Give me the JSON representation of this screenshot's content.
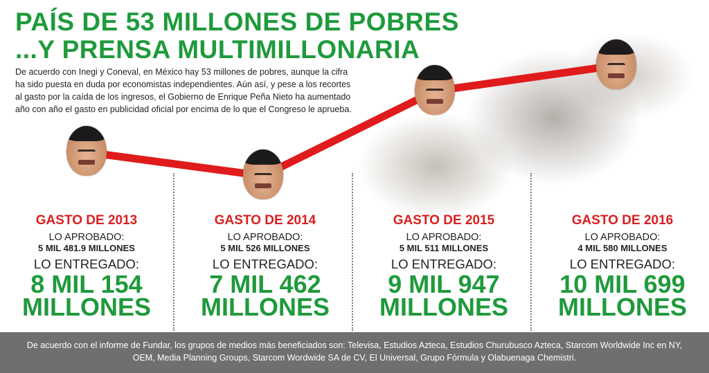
{
  "title": {
    "line1": "PAÍS DE 53 MILLONES DE POBRES",
    "line2": "...Y PRENSA MULTIMILLONARIA"
  },
  "intro": "De acuerdo con Inegi y Coneval, en México hay 53 millones de pobres, aunque la cifra ha sido puesta en duda por economistas independientes. Aún así, y pese a los recortes al gasto por la caída de los ingresos, el Gobierno de Enrique Peña Nieto ha aumentado año con año el gasto en publicidad oficial por encima de lo que el Congreso le aprueba.",
  "columns": [
    {
      "year": "GASTO DE 2013",
      "approved_label": "LO APROBADO:",
      "approved_value": "5 MIL 481.9 MILLONES",
      "delivered_label": "LO ENTREGADO:",
      "delivered_value_line1": "8 MIL 154",
      "delivered_value_line2": "MILLONES"
    },
    {
      "year": "GASTO DE 2014",
      "approved_label": "LO APROBADO:",
      "approved_value": "5 MIL 526 MILLONES",
      "delivered_label": "LO ENTREGADO:",
      "delivered_value_line1": "7 MIL 462",
      "delivered_value_line2": "MILLONES"
    },
    {
      "year": "GASTO DE 2015",
      "approved_label": "LO APROBADO:",
      "approved_value": "5 MIL 511 MILLONES",
      "delivered_label": "LO ENTREGADO:",
      "delivered_value_line1": "9 MIL 947",
      "delivered_value_line2": "MILLONES"
    },
    {
      "year": "GASTO DE 2016",
      "approved_label": "LO APROBADO:",
      "approved_value": "4 MIL 580 MILLONES",
      "delivered_label": "LO ENTREGADO:",
      "delivered_value_line1": "10 MIL 699",
      "delivered_value_line2": "MILLONES"
    }
  ],
  "footer": "De acuerdo con el informe de Fundar, los grupos de medios más beneficiados son: Televisa, Estudios Azteca, Estudios Churubusco Azteca, Starcom Worldwide Inc en NY, OEM, Media Planning Groups, Starcom Wordwide SA de CV, El Universal, Grupo Fórmula y Olabuenaga Chemistri.",
  "colors": {
    "title_green": "#1f9a3c",
    "year_red": "#d81f1f",
    "line_red": "#e01b1b",
    "footer_gray": "#6f6f6f"
  },
  "chart_data": {
    "type": "line",
    "title": "PAÍS DE 53 MILLONES DE POBRES ...Y PRENSA MULTIMILLONARIA",
    "categories": [
      "2013",
      "2014",
      "2015",
      "2016"
    ],
    "series": [
      {
        "values": [
          8154,
          7462,
          9947,
          10699
        ]
      }
    ],
    "approved": [
      5481.9,
      5526,
      5511,
      4580
    ],
    "unit": "millones",
    "markers": "face-photos",
    "grid": false,
    "legend": "none"
  }
}
